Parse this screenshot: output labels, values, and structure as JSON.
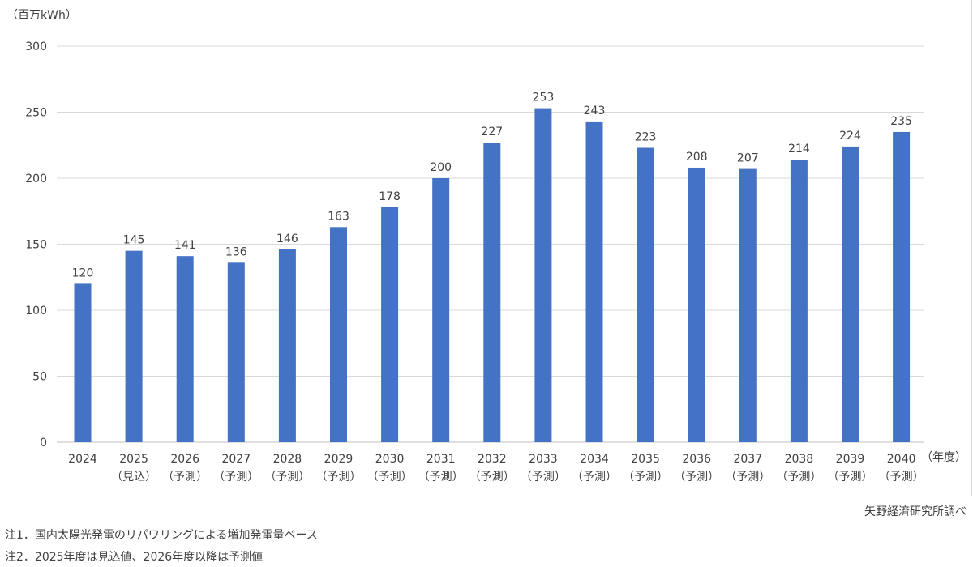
{
  "chart_data": {
    "type": "bar",
    "unit_label": "（百万kWh）",
    "x_unit_label": "（年度）",
    "categories": [
      "2024",
      "2025",
      "2026",
      "2027",
      "2028",
      "2029",
      "2030",
      "2031",
      "2032",
      "2033",
      "2034",
      "2035",
      "2036",
      "2037",
      "2038",
      "2039",
      "2040"
    ],
    "category_sublabels": [
      "",
      "（見込）",
      "（予測）",
      "（予測）",
      "（予測）",
      "（予測）",
      "（予測）",
      "（予測）",
      "（予測）",
      "（予測）",
      "（予測）",
      "（予測）",
      "（予測）",
      "（予測）",
      "（予測）",
      "（予測）",
      "（予測）"
    ],
    "values": [
      120,
      145,
      141,
      136,
      146,
      163,
      178,
      200,
      227,
      253,
      243,
      223,
      208,
      207,
      214,
      224,
      235
    ],
    "ylim": [
      0,
      300
    ],
    "yticks": [
      0,
      50,
      100,
      150,
      200,
      250,
      300
    ],
    "grid": true,
    "bar_color": "#4472c4",
    "grid_color": "#d9d9d9"
  },
  "source": "矢野経済研究所調べ",
  "notes": [
    "注1．国内太陽光発電のリパワリングによる増加発電量ベース",
    "注2．2025年度は見込値、2026年度以降は予測値"
  ]
}
